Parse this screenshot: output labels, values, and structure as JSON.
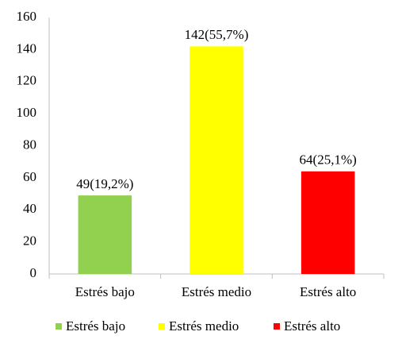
{
  "chart_data": {
    "type": "bar",
    "categories": [
      "Estrés bajo",
      "Estrés medio",
      "Estrés alto"
    ],
    "values": [
      49,
      142,
      64
    ],
    "value_labels": [
      "49(19,2%)",
      "142(55,7%)",
      "64(25,1%)"
    ],
    "colors": [
      "#92d050",
      "#ffff00",
      "#ff0000"
    ],
    "ylim": [
      0,
      160
    ],
    "yticks": [
      0,
      20,
      40,
      60,
      80,
      100,
      120,
      140,
      160
    ],
    "grid": false,
    "legend": "bottom"
  }
}
